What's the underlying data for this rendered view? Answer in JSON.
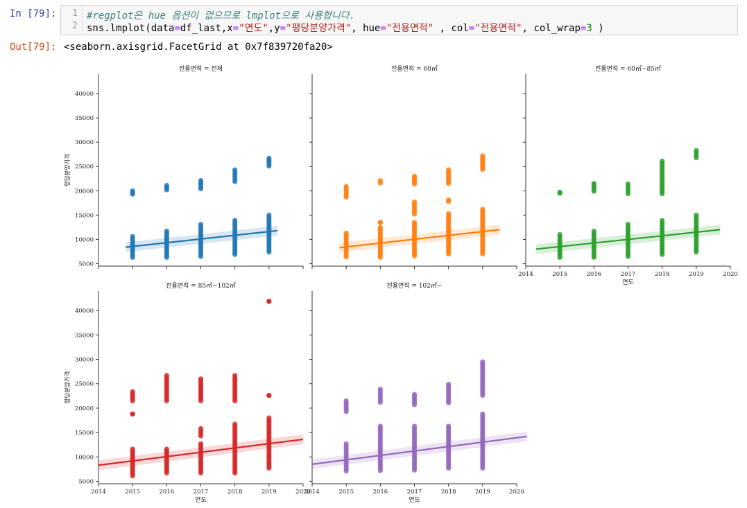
{
  "cell": {
    "in_prompt": "In [79]:",
    "out_prompt": "Out[79]:",
    "line_numbers": [
      "1",
      "2"
    ],
    "comment_line": "#regplot은 hue 옵션이 없으므로 lmplot으로 사용합니다.",
    "code_tokens": [
      {
        "text": "sns.lmplot(data",
        "cls": ""
      },
      {
        "text": "=",
        "cls": "op"
      },
      {
        "text": "df_last,x",
        "cls": ""
      },
      {
        "text": "=",
        "cls": "op"
      },
      {
        "text": "\"연도\"",
        "cls": "st"
      },
      {
        "text": ",y",
        "cls": ""
      },
      {
        "text": "=",
        "cls": "op"
      },
      {
        "text": "\"평당분양가격\"",
        "cls": "st"
      },
      {
        "text": ", hue",
        "cls": ""
      },
      {
        "text": "=",
        "cls": "op"
      },
      {
        "text": "\"전용면적\"",
        "cls": "st"
      },
      {
        "text": " , col",
        "cls": ""
      },
      {
        "text": "=",
        "cls": "op"
      },
      {
        "text": "\"전용면적\"",
        "cls": "st"
      },
      {
        "text": ", col_wrap",
        "cls": ""
      },
      {
        "text": "=",
        "cls": "op"
      },
      {
        "text": "3",
        "cls": "num"
      },
      {
        "text": " )",
        "cls": ""
      }
    ],
    "output_text": "<seaborn.axisgrid.FacetGrid at 0x7f839720fa20>"
  },
  "chart_data": [
    {
      "type": "scatter",
      "title": "전용면적 = 전체",
      "color": "#1f77b4",
      "xlabel": "",
      "ylabel": "평당분양가격",
      "xlim": [
        2014,
        2020
      ],
      "ylim": [
        4500,
        44000
      ],
      "yticks": [
        5000,
        10000,
        15000,
        20000,
        25000,
        30000,
        35000,
        40000
      ],
      "xticks": [],
      "show_ytick_labels": true,
      "show_xtick_labels": false,
      "points": [
        {
          "x": 2015,
          "lo": 6300,
          "hi": 10600
        },
        {
          "x": 2015,
          "lo": 19300,
          "hi": 20000
        },
        {
          "x": 2016,
          "lo": 6300,
          "hi": 11700
        },
        {
          "x": 2016,
          "lo": 20200,
          "hi": 21100
        },
        {
          "x": 2017,
          "lo": 6500,
          "hi": 13100
        },
        {
          "x": 2017,
          "lo": 20400,
          "hi": 22100
        },
        {
          "x": 2018,
          "lo": 6900,
          "hi": 13900
        },
        {
          "x": 2018,
          "lo": 21900,
          "hi": 24300
        },
        {
          "x": 2019,
          "lo": 7400,
          "hi": 15000
        },
        {
          "x": 2019,
          "lo": 25100,
          "hi": 26700
        }
      ],
      "regression": {
        "x0": 2014.8,
        "y0": 8400,
        "x1": 2019.25,
        "y1": 11800
      }
    },
    {
      "type": "scatter",
      "title": "전용면적 = 60㎡",
      "color": "#ff7f0e",
      "xlabel": "",
      "ylabel": "",
      "xlim": [
        2014,
        2020
      ],
      "ylim": [
        4500,
        44000
      ],
      "yticks": [
        5000,
        10000,
        15000,
        20000,
        25000,
        30000,
        35000,
        40000
      ],
      "xticks": [],
      "show_ytick_labels": false,
      "show_xtick_labels": false,
      "points": [
        {
          "x": 2015,
          "lo": 6400,
          "hi": 11300
        },
        {
          "x": 2015,
          "lo": 18700,
          "hi": 20900
        },
        {
          "x": 2016,
          "lo": 6300,
          "hi": 12500
        },
        {
          "x": 2016,
          "lo": 13500,
          "hi": 13500
        },
        {
          "x": 2016,
          "lo": 21600,
          "hi": 22100
        },
        {
          "x": 2017,
          "lo": 6600,
          "hi": 13500
        },
        {
          "x": 2017,
          "lo": 15200,
          "hi": 17700
        },
        {
          "x": 2017,
          "lo": 21400,
          "hi": 23000
        },
        {
          "x": 2018,
          "lo": 7000,
          "hi": 15300
        },
        {
          "x": 2018,
          "lo": 17800,
          "hi": 18100
        },
        {
          "x": 2018,
          "lo": 21500,
          "hi": 24300
        },
        {
          "x": 2019,
          "lo": 7000,
          "hi": 16200
        },
        {
          "x": 2019,
          "lo": 24400,
          "hi": 27200
        }
      ],
      "regression": {
        "x0": 2014.8,
        "y0": 8300,
        "x1": 2019.5,
        "y1": 12000
      }
    },
    {
      "type": "scatter",
      "title": "전용면적 = 60㎡~85㎡",
      "color": "#2ca02c",
      "xlabel": "연도",
      "ylabel": "",
      "xlim": [
        2014,
        2020
      ],
      "ylim": [
        4500,
        44000
      ],
      "yticks": [
        5000,
        10000,
        15000,
        20000,
        25000,
        30000,
        35000,
        40000
      ],
      "xticks": [
        2014,
        2015,
        2016,
        2017,
        2018,
        2019,
        2020
      ],
      "show_ytick_labels": false,
      "show_xtick_labels": true,
      "points": [
        {
          "x": 2015,
          "lo": 6300,
          "hi": 11000
        },
        {
          "x": 2015,
          "lo": 19500,
          "hi": 19700
        },
        {
          "x": 2016,
          "lo": 6300,
          "hi": 11700
        },
        {
          "x": 2016,
          "lo": 19900,
          "hi": 21500
        },
        {
          "x": 2017,
          "lo": 6500,
          "hi": 13100
        },
        {
          "x": 2017,
          "lo": 19400,
          "hi": 21400
        },
        {
          "x": 2018,
          "lo": 6900,
          "hi": 13900
        },
        {
          "x": 2018,
          "lo": 19400,
          "hi": 26100
        },
        {
          "x": 2019,
          "lo": 7400,
          "hi": 15000
        },
        {
          "x": 2019,
          "lo": 26800,
          "hi": 28300
        }
      ],
      "regression": {
        "x0": 2014.3,
        "y0": 8000,
        "x1": 2019.7,
        "y1": 12000
      }
    },
    {
      "type": "scatter",
      "title": "전용면적 = 85㎡~102㎡",
      "color": "#d62728",
      "xlabel": "연도",
      "ylabel": "평당분양가격",
      "xlim": [
        2014,
        2020
      ],
      "ylim": [
        4500,
        44000
      ],
      "yticks": [
        5000,
        10000,
        15000,
        20000,
        25000,
        30000,
        35000,
        40000
      ],
      "xticks": [
        2014,
        2015,
        2016,
        2017,
        2018,
        2019,
        2020
      ],
      "show_ytick_labels": true,
      "show_xtick_labels": true,
      "points": [
        {
          "x": 2015,
          "lo": 6100,
          "hi": 11600
        },
        {
          "x": 2015,
          "lo": 18800,
          "hi": 18800
        },
        {
          "x": 2015,
          "lo": 21500,
          "hi": 23400
        },
        {
          "x": 2016,
          "lo": 6700,
          "hi": 11600
        },
        {
          "x": 2016,
          "lo": 21500,
          "hi": 26700
        },
        {
          "x": 2017,
          "lo": 6700,
          "hi": 12700
        },
        {
          "x": 2017,
          "lo": 14300,
          "hi": 15800
        },
        {
          "x": 2017,
          "lo": 21500,
          "hi": 26000
        },
        {
          "x": 2018,
          "lo": 6700,
          "hi": 16700
        },
        {
          "x": 2018,
          "lo": 21500,
          "hi": 26700
        },
        {
          "x": 2019,
          "lo": 7700,
          "hi": 18000
        },
        {
          "x": 2019,
          "lo": 22600,
          "hi": 22600
        },
        {
          "x": 2019,
          "lo": 41900,
          "hi": 41900
        }
      ],
      "regression": {
        "x0": 2014,
        "y0": 8300,
        "x1": 2020,
        "y1": 13600
      }
    },
    {
      "type": "scatter",
      "title": "전용면적 = 102㎡~",
      "color": "#9467bd",
      "xlabel": "연도",
      "ylabel": "",
      "xlim": [
        2014,
        2020
      ],
      "ylim": [
        4500,
        44000
      ],
      "yticks": [
        5000,
        10000,
        15000,
        20000,
        25000,
        30000,
        35000,
        40000
      ],
      "xticks": [
        2014,
        2015,
        2016,
        2017,
        2018,
        2019,
        2020
      ],
      "show_ytick_labels": false,
      "show_xtick_labels": true,
      "points": [
        {
          "x": 2015,
          "lo": 7100,
          "hi": 12700
        },
        {
          "x": 2015,
          "lo": 19300,
          "hi": 21500
        },
        {
          "x": 2016,
          "lo": 7200,
          "hi": 16300
        },
        {
          "x": 2016,
          "lo": 21200,
          "hi": 23900
        },
        {
          "x": 2017,
          "lo": 7300,
          "hi": 16300
        },
        {
          "x": 2017,
          "lo": 20700,
          "hi": 22800
        },
        {
          "x": 2018,
          "lo": 7700,
          "hi": 16300
        },
        {
          "x": 2018,
          "lo": 21100,
          "hi": 24900
        },
        {
          "x": 2019,
          "lo": 7700,
          "hi": 18800
        },
        {
          "x": 2019,
          "lo": 22600,
          "hi": 29500
        }
      ],
      "regression": {
        "x0": 2014,
        "y0": 8500,
        "x1": 2020.3,
        "y1": 14200
      }
    }
  ]
}
